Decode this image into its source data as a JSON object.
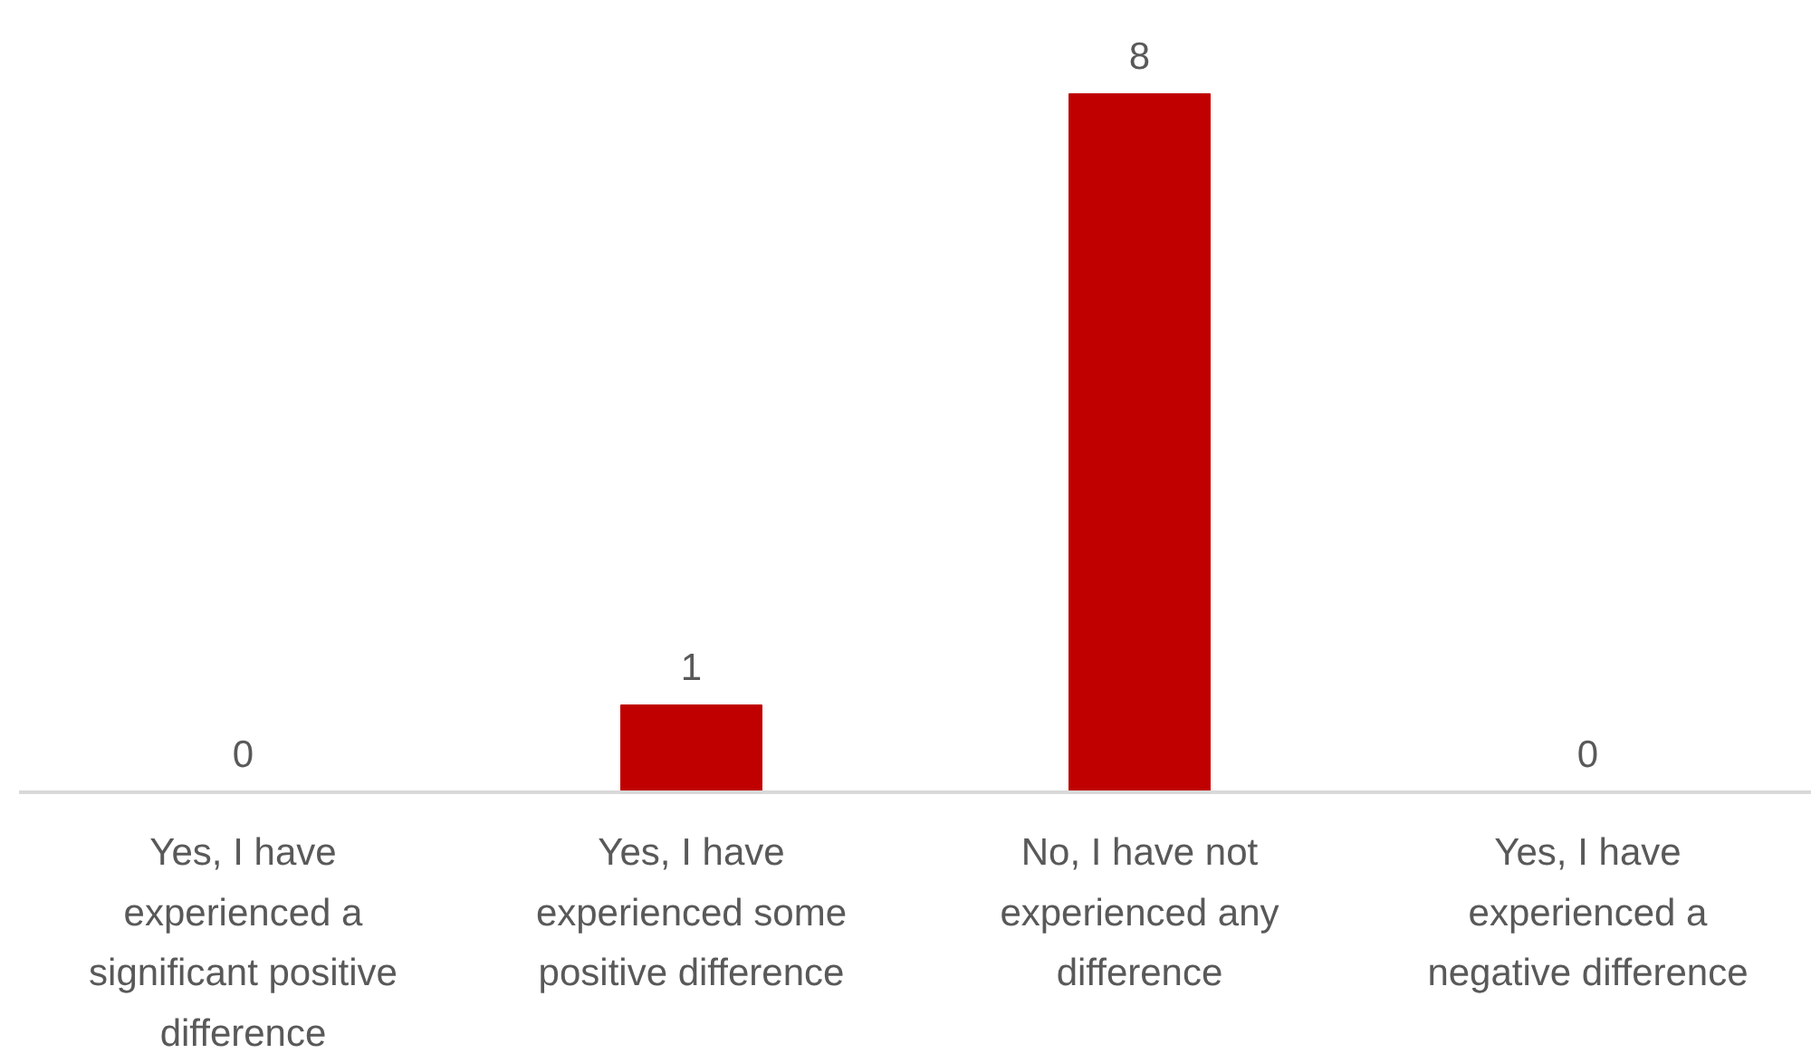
{
  "chart_data": {
    "type": "bar",
    "categories": [
      "Yes, I have experienced a significant positive difference",
      "Yes, I have experienced some positive difference",
      "No, I have not experienced any difference",
      "Yes, I have experienced a negative difference"
    ],
    "values": [
      0,
      1,
      8,
      0
    ],
    "color": "#c00000",
    "data_labels": true
  }
}
